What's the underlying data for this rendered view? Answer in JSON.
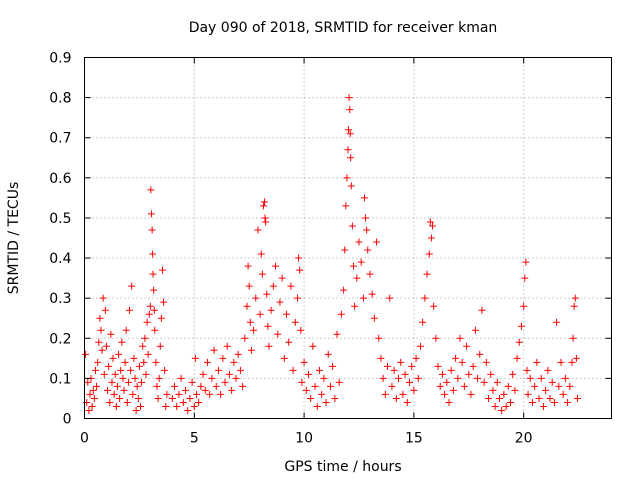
{
  "chart_data": {
    "type": "scatter",
    "title": "Day 090 of 2018, SRMTID for receiver kman",
    "xlabel": "GPS time / hours",
    "ylabel": "SRMTID / TECUs",
    "xlim": [
      0,
      24
    ],
    "ylim": [
      0,
      0.9
    ],
    "xticks": [
      0,
      5,
      10,
      15,
      20
    ],
    "xtick_labels": [
      "0",
      "5",
      "10",
      "15",
      "20"
    ],
    "yticks": [
      0,
      0.1,
      0.2,
      0.3,
      0.4,
      0.5,
      0.6,
      0.7,
      0.8,
      0.9
    ],
    "ytick_labels": [
      "0",
      "0.1",
      "0.2",
      "0.3",
      "0.4",
      "0.5",
      "0.6",
      "0.7",
      "0.8",
      "0.9"
    ],
    "grid": true,
    "marker": "plus",
    "color": "#ff0000",
    "series": [
      {
        "name": "SRMTID",
        "points": [
          [
            0.05,
            0.16
          ],
          [
            0.1,
            0.04
          ],
          [
            0.15,
            0.09
          ],
          [
            0.2,
            0.02
          ],
          [
            0.25,
            0.06
          ],
          [
            0.3,
            0.1
          ],
          [
            0.35,
            0.03
          ],
          [
            0.4,
            0.07
          ],
          [
            0.45,
            0.05
          ],
          [
            0.5,
            0.12
          ],
          [
            0.55,
            0.08
          ],
          [
            0.6,
            0.14
          ],
          [
            0.65,
            0.19
          ],
          [
            0.7,
            0.25
          ],
          [
            0.75,
            0.22
          ],
          [
            0.8,
            0.17
          ],
          [
            0.85,
            0.3
          ],
          [
            0.9,
            0.11
          ],
          [
            0.95,
            0.27
          ],
          [
            1.0,
            0.18
          ],
          [
            1.05,
            0.07
          ],
          [
            1.1,
            0.13
          ],
          [
            1.15,
            0.04
          ],
          [
            1.2,
            0.21
          ],
          [
            1.25,
            0.09
          ],
          [
            1.3,
            0.15
          ],
          [
            1.35,
            0.06
          ],
          [
            1.4,
            0.11
          ],
          [
            1.45,
            0.03
          ],
          [
            1.5,
            0.08
          ],
          [
            1.55,
            0.16
          ],
          [
            1.6,
            0.05
          ],
          [
            1.65,
            0.12
          ],
          [
            1.7,
            0.19
          ],
          [
            1.75,
            0.1
          ],
          [
            1.8,
            0.07
          ],
          [
            1.85,
            0.14
          ],
          [
            1.9,
            0.22
          ],
          [
            1.95,
            0.04
          ],
          [
            2.0,
            0.09
          ],
          [
            2.05,
            0.27
          ],
          [
            2.1,
            0.12
          ],
          [
            2.15,
            0.33
          ],
          [
            2.2,
            0.06
          ],
          [
            2.25,
            0.15
          ],
          [
            2.3,
            0.1
          ],
          [
            2.35,
            0.02
          ],
          [
            2.4,
            0.08
          ],
          [
            2.45,
            0.05
          ],
          [
            2.5,
            0.13
          ],
          [
            2.55,
            0.03
          ],
          [
            2.6,
            0.09
          ],
          [
            2.65,
            0.18
          ],
          [
            2.7,
            0.14
          ],
          [
            2.75,
            0.2
          ],
          [
            2.8,
            0.11
          ],
          [
            2.85,
            0.24
          ],
          [
            2.9,
            0.16
          ],
          [
            2.95,
            0.26
          ],
          [
            3.0,
            0.28
          ],
          [
            3.02,
            0.57
          ],
          [
            3.05,
            0.51
          ],
          [
            3.08,
            0.47
          ],
          [
            3.1,
            0.41
          ],
          [
            3.12,
            0.36
          ],
          [
            3.15,
            0.32
          ],
          [
            3.18,
            0.27
          ],
          [
            3.2,
            0.22
          ],
          [
            3.25,
            0.14
          ],
          [
            3.3,
            0.08
          ],
          [
            3.35,
            0.05
          ],
          [
            3.4,
            0.1
          ],
          [
            3.45,
            0.18
          ],
          [
            3.5,
            0.25
          ],
          [
            3.55,
            0.37
          ],
          [
            3.6,
            0.29
          ],
          [
            3.65,
            0.12
          ],
          [
            3.7,
            0.03
          ],
          [
            3.75,
            0.06
          ],
          [
            4.0,
            0.05
          ],
          [
            4.1,
            0.08
          ],
          [
            4.2,
            0.03
          ],
          [
            4.3,
            0.06
          ],
          [
            4.4,
            0.1
          ],
          [
            4.5,
            0.04
          ],
          [
            4.6,
            0.07
          ],
          [
            4.7,
            0.02
          ],
          [
            4.8,
            0.05
          ],
          [
            4.9,
            0.09
          ],
          [
            5.0,
            0.03
          ],
          [
            5.05,
            0.15
          ],
          [
            5.1,
            0.06
          ],
          [
            5.2,
            0.04
          ],
          [
            5.3,
            0.08
          ],
          [
            5.4,
            0.11
          ],
          [
            5.5,
            0.07
          ],
          [
            5.6,
            0.14
          ],
          [
            5.7,
            0.06
          ],
          [
            5.8,
            0.1
          ],
          [
            5.9,
            0.17
          ],
          [
            6.0,
            0.08
          ],
          [
            6.1,
            0.12
          ],
          [
            6.2,
            0.06
          ],
          [
            6.3,
            0.15
          ],
          [
            6.4,
            0.09
          ],
          [
            6.5,
            0.18
          ],
          [
            6.6,
            0.11
          ],
          [
            6.7,
            0.07
          ],
          [
            6.8,
            0.14
          ],
          [
            6.9,
            0.1
          ],
          [
            7.0,
            0.16
          ],
          [
            7.1,
            0.12
          ],
          [
            7.2,
            0.08
          ],
          [
            7.3,
            0.2
          ],
          [
            7.4,
            0.28
          ],
          [
            7.45,
            0.38
          ],
          [
            7.5,
            0.33
          ],
          [
            7.55,
            0.24
          ],
          [
            7.6,
            0.17
          ],
          [
            7.7,
            0.22
          ],
          [
            7.8,
            0.3
          ],
          [
            7.9,
            0.47
          ],
          [
            8.0,
            0.26
          ],
          [
            8.05,
            0.41
          ],
          [
            8.1,
            0.36
          ],
          [
            8.15,
            0.53
          ],
          [
            8.2,
            0.54
          ],
          [
            8.22,
            0.5
          ],
          [
            8.25,
            0.49
          ],
          [
            8.3,
            0.31
          ],
          [
            8.35,
            0.23
          ],
          [
            8.4,
            0.18
          ],
          [
            8.5,
            0.27
          ],
          [
            8.6,
            0.33
          ],
          [
            8.7,
            0.38
          ],
          [
            8.8,
            0.21
          ],
          [
            8.9,
            0.29
          ],
          [
            9.0,
            0.35
          ],
          [
            9.1,
            0.15
          ],
          [
            9.2,
            0.26
          ],
          [
            9.3,
            0.19
          ],
          [
            9.4,
            0.33
          ],
          [
            9.5,
            0.12
          ],
          [
            9.6,
            0.24
          ],
          [
            9.7,
            0.3
          ],
          [
            9.75,
            0.4
          ],
          [
            9.8,
            0.37
          ],
          [
            9.85,
            0.22
          ],
          [
            9.9,
            0.09
          ],
          [
            10.0,
            0.14
          ],
          [
            10.1,
            0.07
          ],
          [
            10.2,
            0.11
          ],
          [
            10.3,
            0.05
          ],
          [
            10.4,
            0.18
          ],
          [
            10.5,
            0.08
          ],
          [
            10.6,
            0.03
          ],
          [
            10.7,
            0.12
          ],
          [
            10.8,
            0.06
          ],
          [
            10.9,
            0.1
          ],
          [
            11.0,
            0.04
          ],
          [
            11.1,
            0.16
          ],
          [
            11.2,
            0.08
          ],
          [
            11.3,
            0.13
          ],
          [
            11.4,
            0.05
          ],
          [
            11.5,
            0.21
          ],
          [
            11.6,
            0.09
          ],
          [
            11.7,
            0.26
          ],
          [
            11.8,
            0.32
          ],
          [
            11.85,
            0.42
          ],
          [
            11.9,
            0.53
          ],
          [
            11.95,
            0.6
          ],
          [
            12.0,
            0.67
          ],
          [
            12.02,
            0.72
          ],
          [
            12.05,
            0.8
          ],
          [
            12.08,
            0.77
          ],
          [
            12.1,
            0.71
          ],
          [
            12.12,
            0.65
          ],
          [
            12.15,
            0.58
          ],
          [
            12.2,
            0.48
          ],
          [
            12.25,
            0.38
          ],
          [
            12.3,
            0.28
          ],
          [
            12.4,
            0.35
          ],
          [
            12.5,
            0.44
          ],
          [
            12.6,
            0.39
          ],
          [
            12.7,
            0.3
          ],
          [
            12.75,
            0.55
          ],
          [
            12.8,
            0.5
          ],
          [
            12.85,
            0.47
          ],
          [
            12.9,
            0.42
          ],
          [
            13.0,
            0.36
          ],
          [
            13.1,
            0.31
          ],
          [
            13.2,
            0.25
          ],
          [
            13.3,
            0.44
          ],
          [
            13.4,
            0.2
          ],
          [
            13.5,
            0.15
          ],
          [
            13.6,
            0.1
          ],
          [
            13.7,
            0.06
          ],
          [
            13.8,
            0.13
          ],
          [
            13.9,
            0.3
          ],
          [
            14.0,
            0.08
          ],
          [
            14.1,
            0.12
          ],
          [
            14.2,
            0.05
          ],
          [
            14.3,
            0.1
          ],
          [
            14.4,
            0.14
          ],
          [
            14.5,
            0.06
          ],
          [
            14.6,
            0.11
          ],
          [
            14.7,
            0.04
          ],
          [
            14.8,
            0.09
          ],
          [
            14.9,
            0.13
          ],
          [
            15.0,
            0.07
          ],
          [
            15.1,
            0.15
          ],
          [
            15.2,
            0.1
          ],
          [
            15.3,
            0.18
          ],
          [
            15.4,
            0.24
          ],
          [
            15.5,
            0.3
          ],
          [
            15.6,
            0.36
          ],
          [
            15.7,
            0.41
          ],
          [
            15.75,
            0.49
          ],
          [
            15.8,
            0.45
          ],
          [
            15.85,
            0.48
          ],
          [
            15.9,
            0.28
          ],
          [
            16.0,
            0.2
          ],
          [
            16.1,
            0.13
          ],
          [
            16.2,
            0.08
          ],
          [
            16.3,
            0.11
          ],
          [
            16.4,
            0.06
          ],
          [
            16.5,
            0.09
          ],
          [
            16.6,
            0.04
          ],
          [
            16.7,
            0.12
          ],
          [
            16.8,
            0.07
          ],
          [
            16.9,
            0.15
          ],
          [
            17.0,
            0.1
          ],
          [
            17.1,
            0.2
          ],
          [
            17.2,
            0.14
          ],
          [
            17.3,
            0.08
          ],
          [
            17.4,
            0.18
          ],
          [
            17.5,
            0.11
          ],
          [
            17.6,
            0.06
          ],
          [
            17.7,
            0.13
          ],
          [
            17.8,
            0.22
          ],
          [
            17.9,
            0.1
          ],
          [
            18.0,
            0.16
          ],
          [
            18.1,
            0.27
          ],
          [
            18.2,
            0.09
          ],
          [
            18.3,
            0.14
          ],
          [
            18.4,
            0.05
          ],
          [
            18.5,
            0.11
          ],
          [
            18.6,
            0.07
          ],
          [
            18.7,
            0.03
          ],
          [
            18.8,
            0.09
          ],
          [
            18.9,
            0.05
          ],
          [
            19.0,
            0.02
          ],
          [
            19.1,
            0.06
          ],
          [
            19.2,
            0.03
          ],
          [
            19.3,
            0.08
          ],
          [
            19.4,
            0.04
          ],
          [
            19.5,
            0.11
          ],
          [
            19.6,
            0.07
          ],
          [
            19.7,
            0.15
          ],
          [
            19.8,
            0.19
          ],
          [
            19.9,
            0.23
          ],
          [
            20.0,
            0.28
          ],
          [
            20.05,
            0.35
          ],
          [
            20.1,
            0.39
          ],
          [
            20.15,
            0.12
          ],
          [
            20.2,
            0.06
          ],
          [
            20.3,
            0.1
          ],
          [
            20.4,
            0.04
          ],
          [
            20.5,
            0.08
          ],
          [
            20.6,
            0.14
          ],
          [
            20.7,
            0.05
          ],
          [
            20.8,
            0.1
          ],
          [
            20.9,
            0.03
          ],
          [
            21.0,
            0.07
          ],
          [
            21.1,
            0.12
          ],
          [
            21.2,
            0.05
          ],
          [
            21.3,
            0.09
          ],
          [
            21.4,
            0.04
          ],
          [
            21.5,
            0.24
          ],
          [
            21.6,
            0.08
          ],
          [
            21.7,
            0.14
          ],
          [
            21.8,
            0.06
          ],
          [
            21.9,
            0.1
          ],
          [
            22.0,
            0.04
          ],
          [
            22.1,
            0.08
          ],
          [
            22.2,
            0.14
          ],
          [
            22.25,
            0.2
          ],
          [
            22.3,
            0.28
          ],
          [
            22.35,
            0.3
          ],
          [
            22.4,
            0.15
          ],
          [
            22.45,
            0.05
          ]
        ]
      }
    ]
  }
}
